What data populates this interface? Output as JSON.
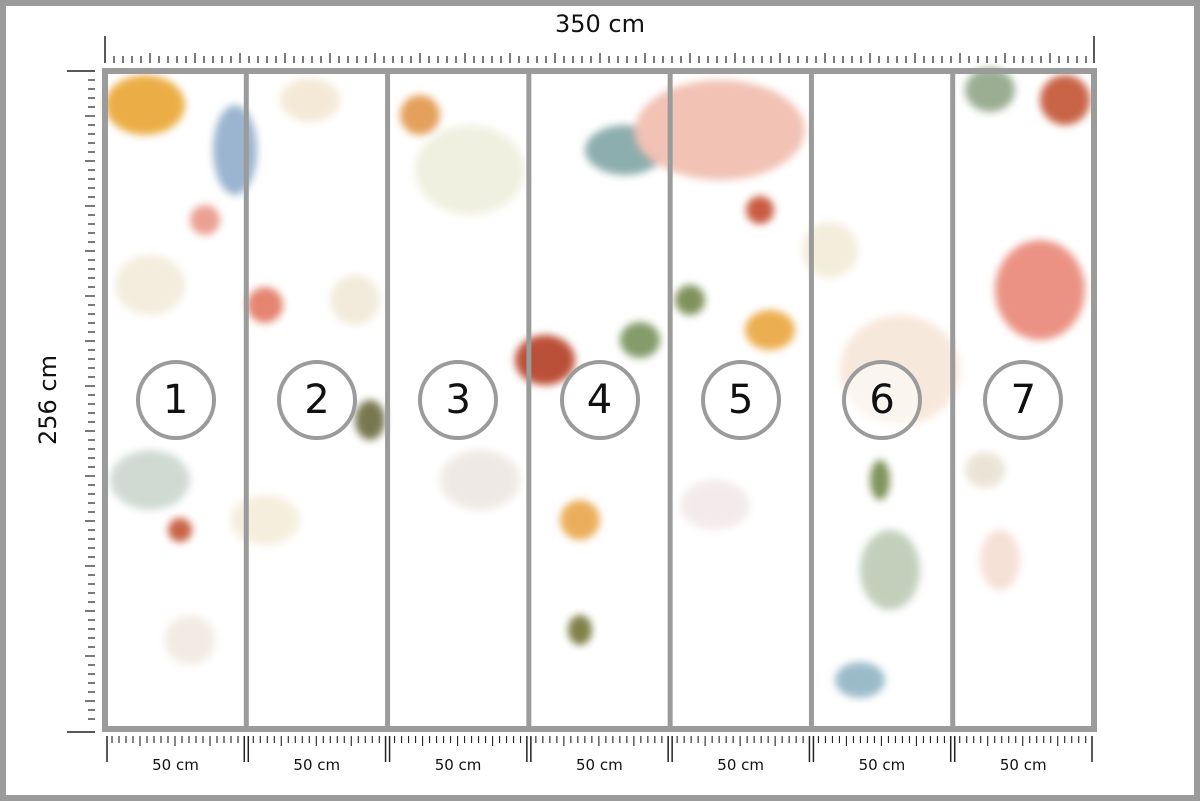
{
  "dimensions": {
    "width_label": "350 cm",
    "height_label": "256 cm"
  },
  "panels": [
    {
      "number": "1",
      "width_label": "50 cm"
    },
    {
      "number": "2",
      "width_label": "50 cm"
    },
    {
      "number": "3",
      "width_label": "50 cm"
    },
    {
      "number": "4",
      "width_label": "50 cm"
    },
    {
      "number": "5",
      "width_label": "50 cm"
    },
    {
      "number": "6",
      "width_label": "50 cm"
    },
    {
      "number": "7",
      "width_label": "50 cm"
    }
  ],
  "colors": {
    "frame": "#9b9b9b",
    "ruler": "#222222"
  }
}
